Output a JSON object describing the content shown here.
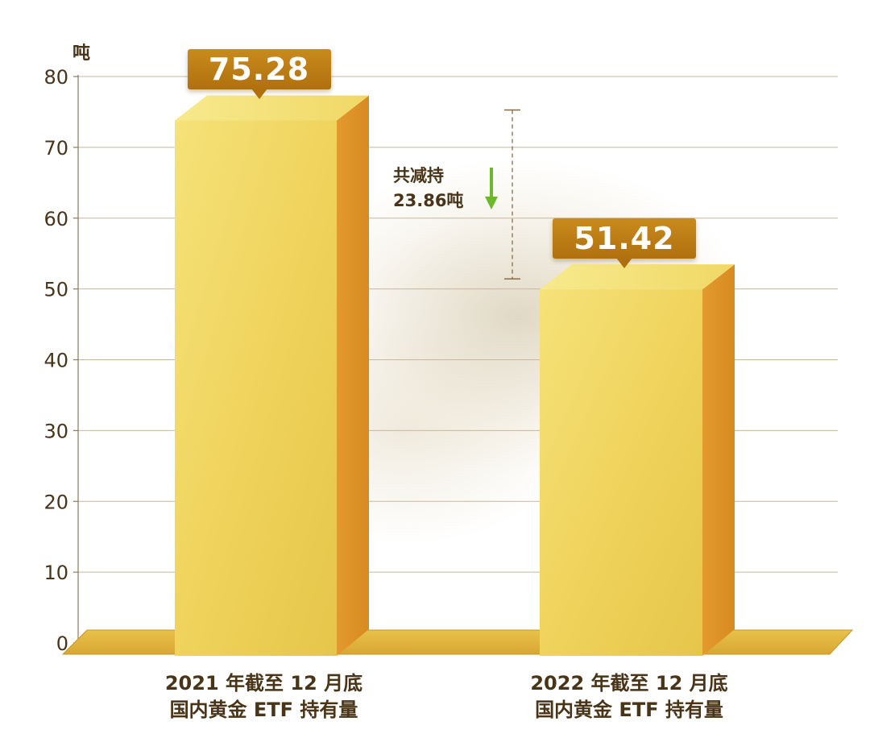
{
  "chart_data": {
    "type": "bar",
    "unit": "吨",
    "categories": [
      [
        "2021 年截至 12 月底",
        "国内黄金 ETF 持有量"
      ],
      [
        "2022 年截至 12 月底",
        "国内黄金 ETF 持有量"
      ]
    ],
    "values": [
      75.28,
      51.42
    ],
    "value_labels": [
      "75.28",
      "51.42"
    ],
    "ylim": [
      0,
      80
    ],
    "yticks": [
      0,
      10,
      20,
      30,
      40,
      50,
      60,
      70,
      80
    ],
    "grid": true,
    "annotation": {
      "line1": "共减持",
      "line2": "23.86吨"
    },
    "colors": {
      "bar_front_top": "#f6e27a",
      "bar_front_bottom": "#e6c64a",
      "bar_side": "#d78a22",
      "bar_top": "#f7ea8e",
      "callout": "#b5760f",
      "floor": "#d9a632",
      "arrow": "#6bb82a",
      "text": "#4a3418",
      "grid": "#c8b79a"
    }
  }
}
